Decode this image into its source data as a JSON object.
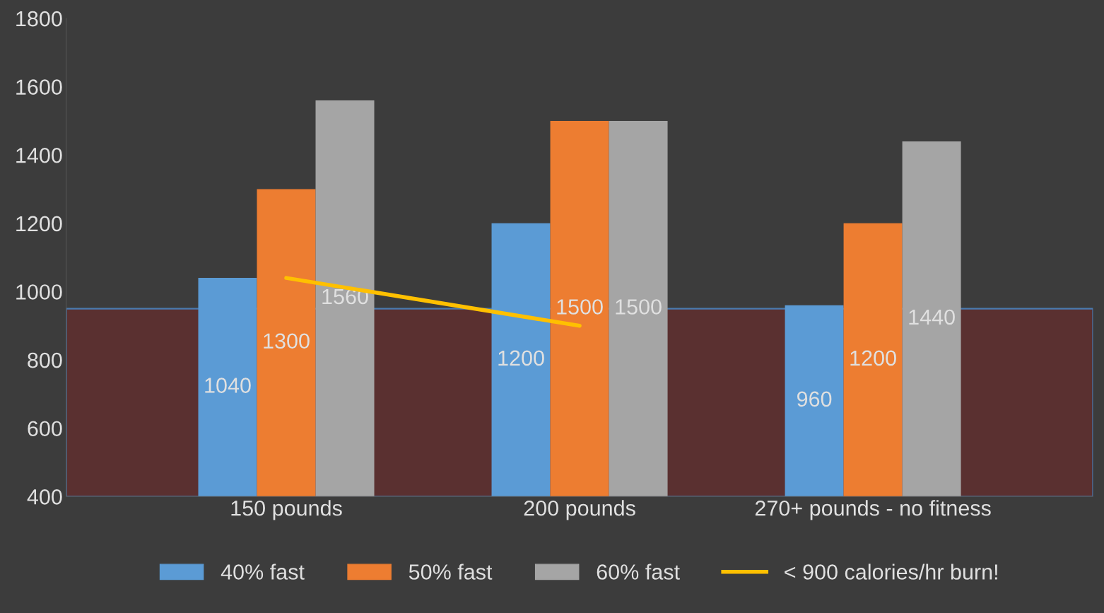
{
  "chart_data": {
    "type": "bar",
    "categories": [
      "150 pounds",
      "200 pounds",
      "270+ pounds - no fitness"
    ],
    "series": [
      {
        "name": "40% fast",
        "color": "#5b9bd5",
        "values": [
          1040,
          1200,
          960
        ],
        "value_labels": [
          "1040",
          "1200",
          "960"
        ]
      },
      {
        "name": "50% fast",
        "color": "#ed7d31",
        "values": [
          1300,
          1500,
          1200
        ],
        "value_labels": [
          "1300",
          "1500",
          "1200"
        ]
      },
      {
        "name": "60% fast",
        "color": "#a5a5a5",
        "values": [
          1560,
          1500,
          1440
        ],
        "value_labels": [
          "1560",
          "1500",
          "1440"
        ]
      },
      {
        "name": "< 900 calories/hr burn!",
        "type": "line",
        "color": "#ffc000",
        "values": [
          1040,
          900,
          null
        ]
      }
    ],
    "ylim": [
      400,
      1800
    ],
    "yticks": [
      400,
      600,
      800,
      1000,
      1200,
      1400,
      1600,
      1800
    ],
    "bands": [
      {
        "axis": "y",
        "from": 400,
        "to": 950,
        "color": "#5a3030"
      }
    ],
    "legend": "bottom",
    "grid": false
  }
}
